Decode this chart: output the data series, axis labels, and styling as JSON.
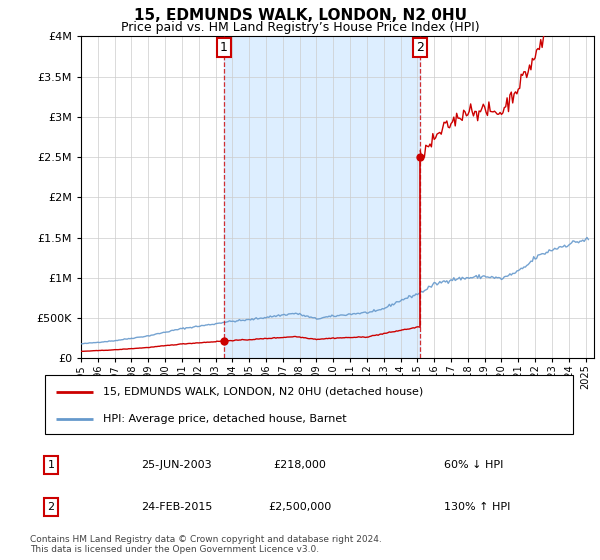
{
  "title": "15, EDMUNDS WALK, LONDON, N2 0HU",
  "subtitle": "Price paid vs. HM Land Registry’s House Price Index (HPI)",
  "ylim": [
    0,
    4000000
  ],
  "yticks": [
    0,
    500000,
    1000000,
    1500000,
    2000000,
    2500000,
    3000000,
    3500000,
    4000000
  ],
  "hpi_color": "#6699cc",
  "sale_color": "#cc0000",
  "dashed_color": "#cc0000",
  "shade_color": "#ddeeff",
  "grid_color": "#cccccc",
  "background_color": "#ffffff",
  "sale1_date_num": 2003.48,
  "sale1_price": 218000,
  "sale2_date_num": 2015.14,
  "sale2_price": 2500000,
  "legend_sale_label": "15, EDMUNDS WALK, LONDON, N2 0HU (detached house)",
  "legend_hpi_label": "HPI: Average price, detached house, Barnet",
  "table_rows": [
    {
      "num": "1",
      "date": "25-JUN-2003",
      "price": "£218,000",
      "hpi": "60% ↓ HPI"
    },
    {
      "num": "2",
      "date": "24-FEB-2015",
      "price": "£2,500,000",
      "hpi": "130% ↑ HPI"
    }
  ],
  "footnote": "Contains HM Land Registry data © Crown copyright and database right 2024.\nThis data is licensed under the Open Government Licence v3.0.",
  "xmin": 1995.0,
  "xmax": 2025.5
}
